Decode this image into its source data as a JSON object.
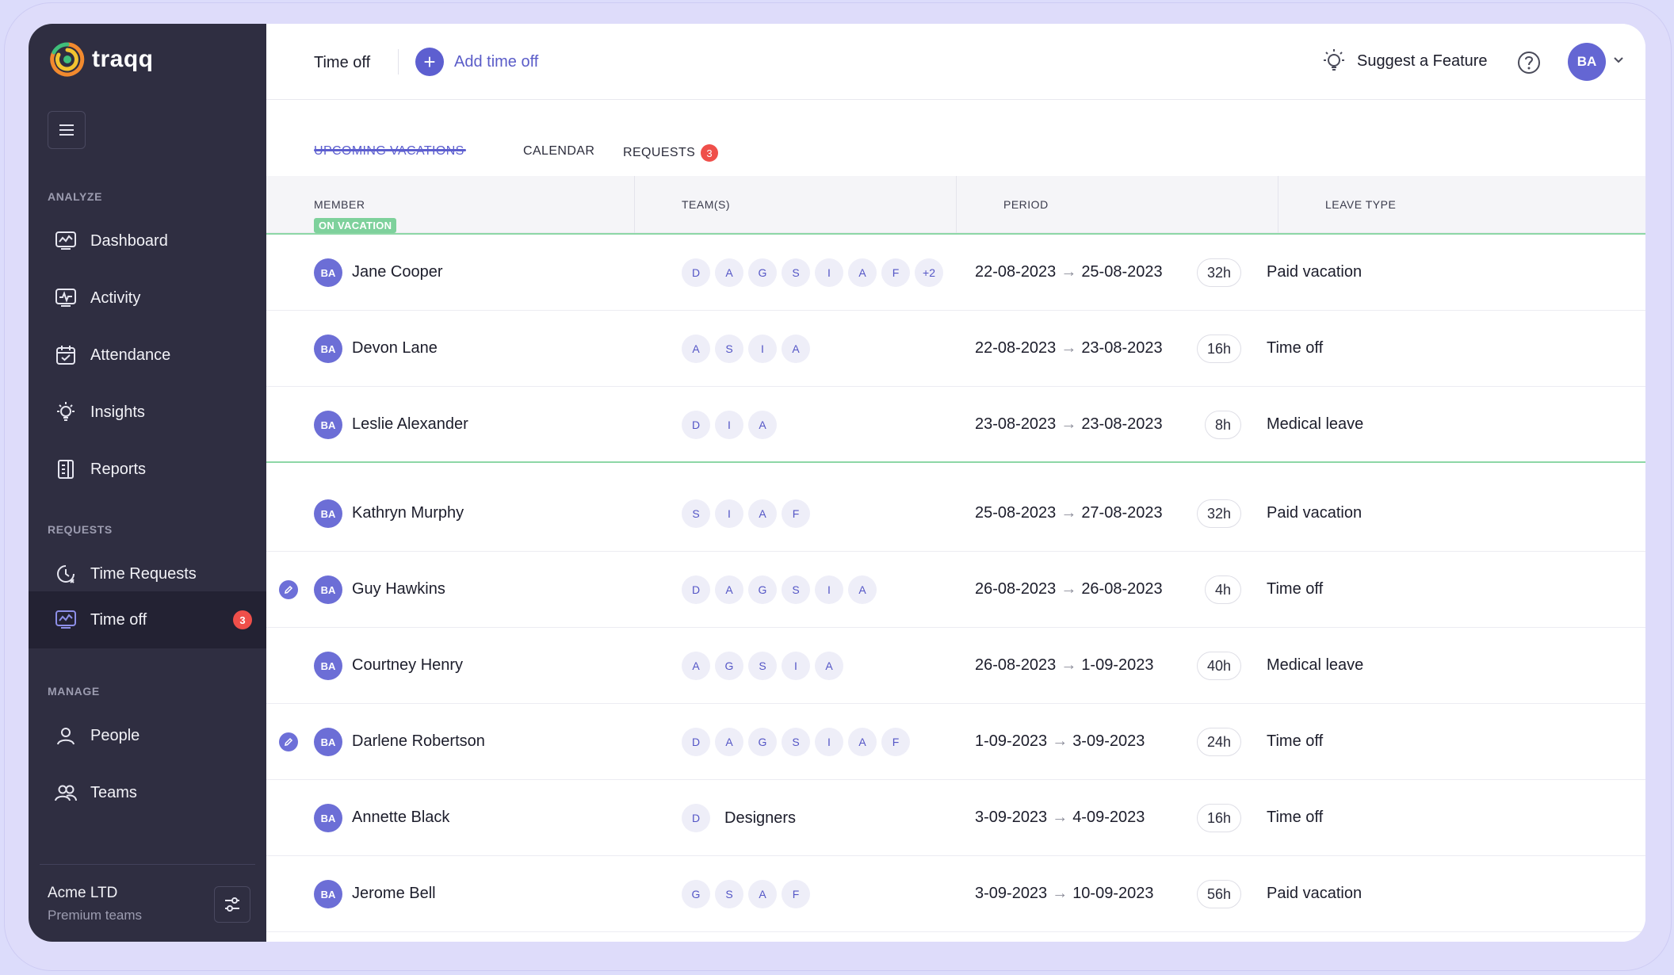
{
  "app": {
    "brand": "traqq"
  },
  "sidebar": {
    "sections": {
      "analyze": "ANALYZE",
      "requests": "REQUESTS",
      "manage": "MANAGE"
    },
    "items": [
      {
        "label": "Dashboard",
        "icon": "dashboard-icon"
      },
      {
        "label": "Activity",
        "icon": "activity-icon"
      },
      {
        "label": "Attendance",
        "icon": "calendar-check-icon"
      },
      {
        "label": "Insights",
        "icon": "lightbulb-icon"
      },
      {
        "label": "Reports",
        "icon": "report-icon"
      },
      {
        "label": "Time Requests",
        "icon": "clock-request-icon"
      },
      {
        "label": "Time off",
        "icon": "time-off-icon",
        "badge": "3"
      },
      {
        "label": "People",
        "icon": "people-icon"
      },
      {
        "label": "Teams",
        "icon": "teams-icon"
      }
    ],
    "org": {
      "name": "Acme LTD",
      "plan": "Premium teams"
    }
  },
  "header": {
    "title": "Time off",
    "add_label": "Add time off",
    "suggest_label": "Suggest a Feature",
    "avatar": "BA"
  },
  "tabs": [
    {
      "label": "UPCOMING VACATIONS",
      "active": true
    },
    {
      "label": "CALENDAR"
    },
    {
      "label": "REQUESTS",
      "badge": "3"
    }
  ],
  "table": {
    "columns": [
      "MEMBER",
      "TEAM(S)",
      "PERIOD",
      "LEAVE TYPE"
    ],
    "on_vacation_label": "ON VACATION",
    "rows": [
      {
        "initials": "BA",
        "name": "Jane Cooper",
        "teams": [
          "D",
          "A",
          "G",
          "S",
          "I",
          "A",
          "F",
          "+2"
        ],
        "start": "22-08-2023",
        "end": "25-08-2023",
        "hours": "32h",
        "leave": "Paid vacation",
        "edit": false
      },
      {
        "initials": "BA",
        "name": "Devon Lane",
        "teams": [
          "A",
          "S",
          "I",
          "A"
        ],
        "start": "22-08-2023",
        "end": "23-08-2023",
        "hours": "16h",
        "leave": "Time off",
        "edit": false
      },
      {
        "initials": "BA",
        "name": "Leslie Alexander",
        "teams": [
          "D",
          "I",
          "A"
        ],
        "start": "23-08-2023",
        "end": "23-08-2023",
        "hours": "8h",
        "leave": "Medical leave",
        "edit": false
      },
      {
        "initials": "BA",
        "name": "Kathryn Murphy",
        "teams": [
          "S",
          "I",
          "A",
          "F"
        ],
        "start": "25-08-2023",
        "end": "27-08-2023",
        "hours": "32h",
        "leave": "Paid vacation",
        "edit": false
      },
      {
        "initials": "BA",
        "name": "Guy Hawkins",
        "teams": [
          "D",
          "A",
          "G",
          "S",
          "I",
          "A"
        ],
        "start": "26-08-2023",
        "end": "26-08-2023",
        "hours": "4h",
        "leave": "Time off",
        "edit": true
      },
      {
        "initials": "BA",
        "name": "Courtney Henry",
        "teams": [
          "A",
          "G",
          "S",
          "I",
          "A"
        ],
        "start": "26-08-2023",
        "end": "1-09-2023",
        "hours": "40h",
        "leave": "Medical leave",
        "edit": false
      },
      {
        "initials": "BA",
        "name": "Darlene Robertson",
        "teams": [
          "D",
          "A",
          "G",
          "S",
          "I",
          "A",
          "F"
        ],
        "start": "1-09-2023",
        "end": "3-09-2023",
        "hours": "24h",
        "leave": "Time off",
        "edit": true
      },
      {
        "initials": "BA",
        "name": "Annette Black",
        "teams": [
          "D"
        ],
        "team_name": "Designers",
        "start": "3-09-2023",
        "end": "4-09-2023",
        "hours": "16h",
        "leave": "Time off",
        "edit": false
      },
      {
        "initials": "BA",
        "name": "Jerome Bell",
        "teams": [
          "G",
          "S",
          "A",
          "F"
        ],
        "start": "3-09-2023",
        "end": "10-09-2023",
        "hours": "56h",
        "leave": "Paid vacation",
        "edit": false
      }
    ]
  },
  "colors": {
    "accent": "#5c5ecf",
    "sidebar_bg": "#2f2e41",
    "badge": "#ef4f4a",
    "vacation": "#7ed19c"
  }
}
